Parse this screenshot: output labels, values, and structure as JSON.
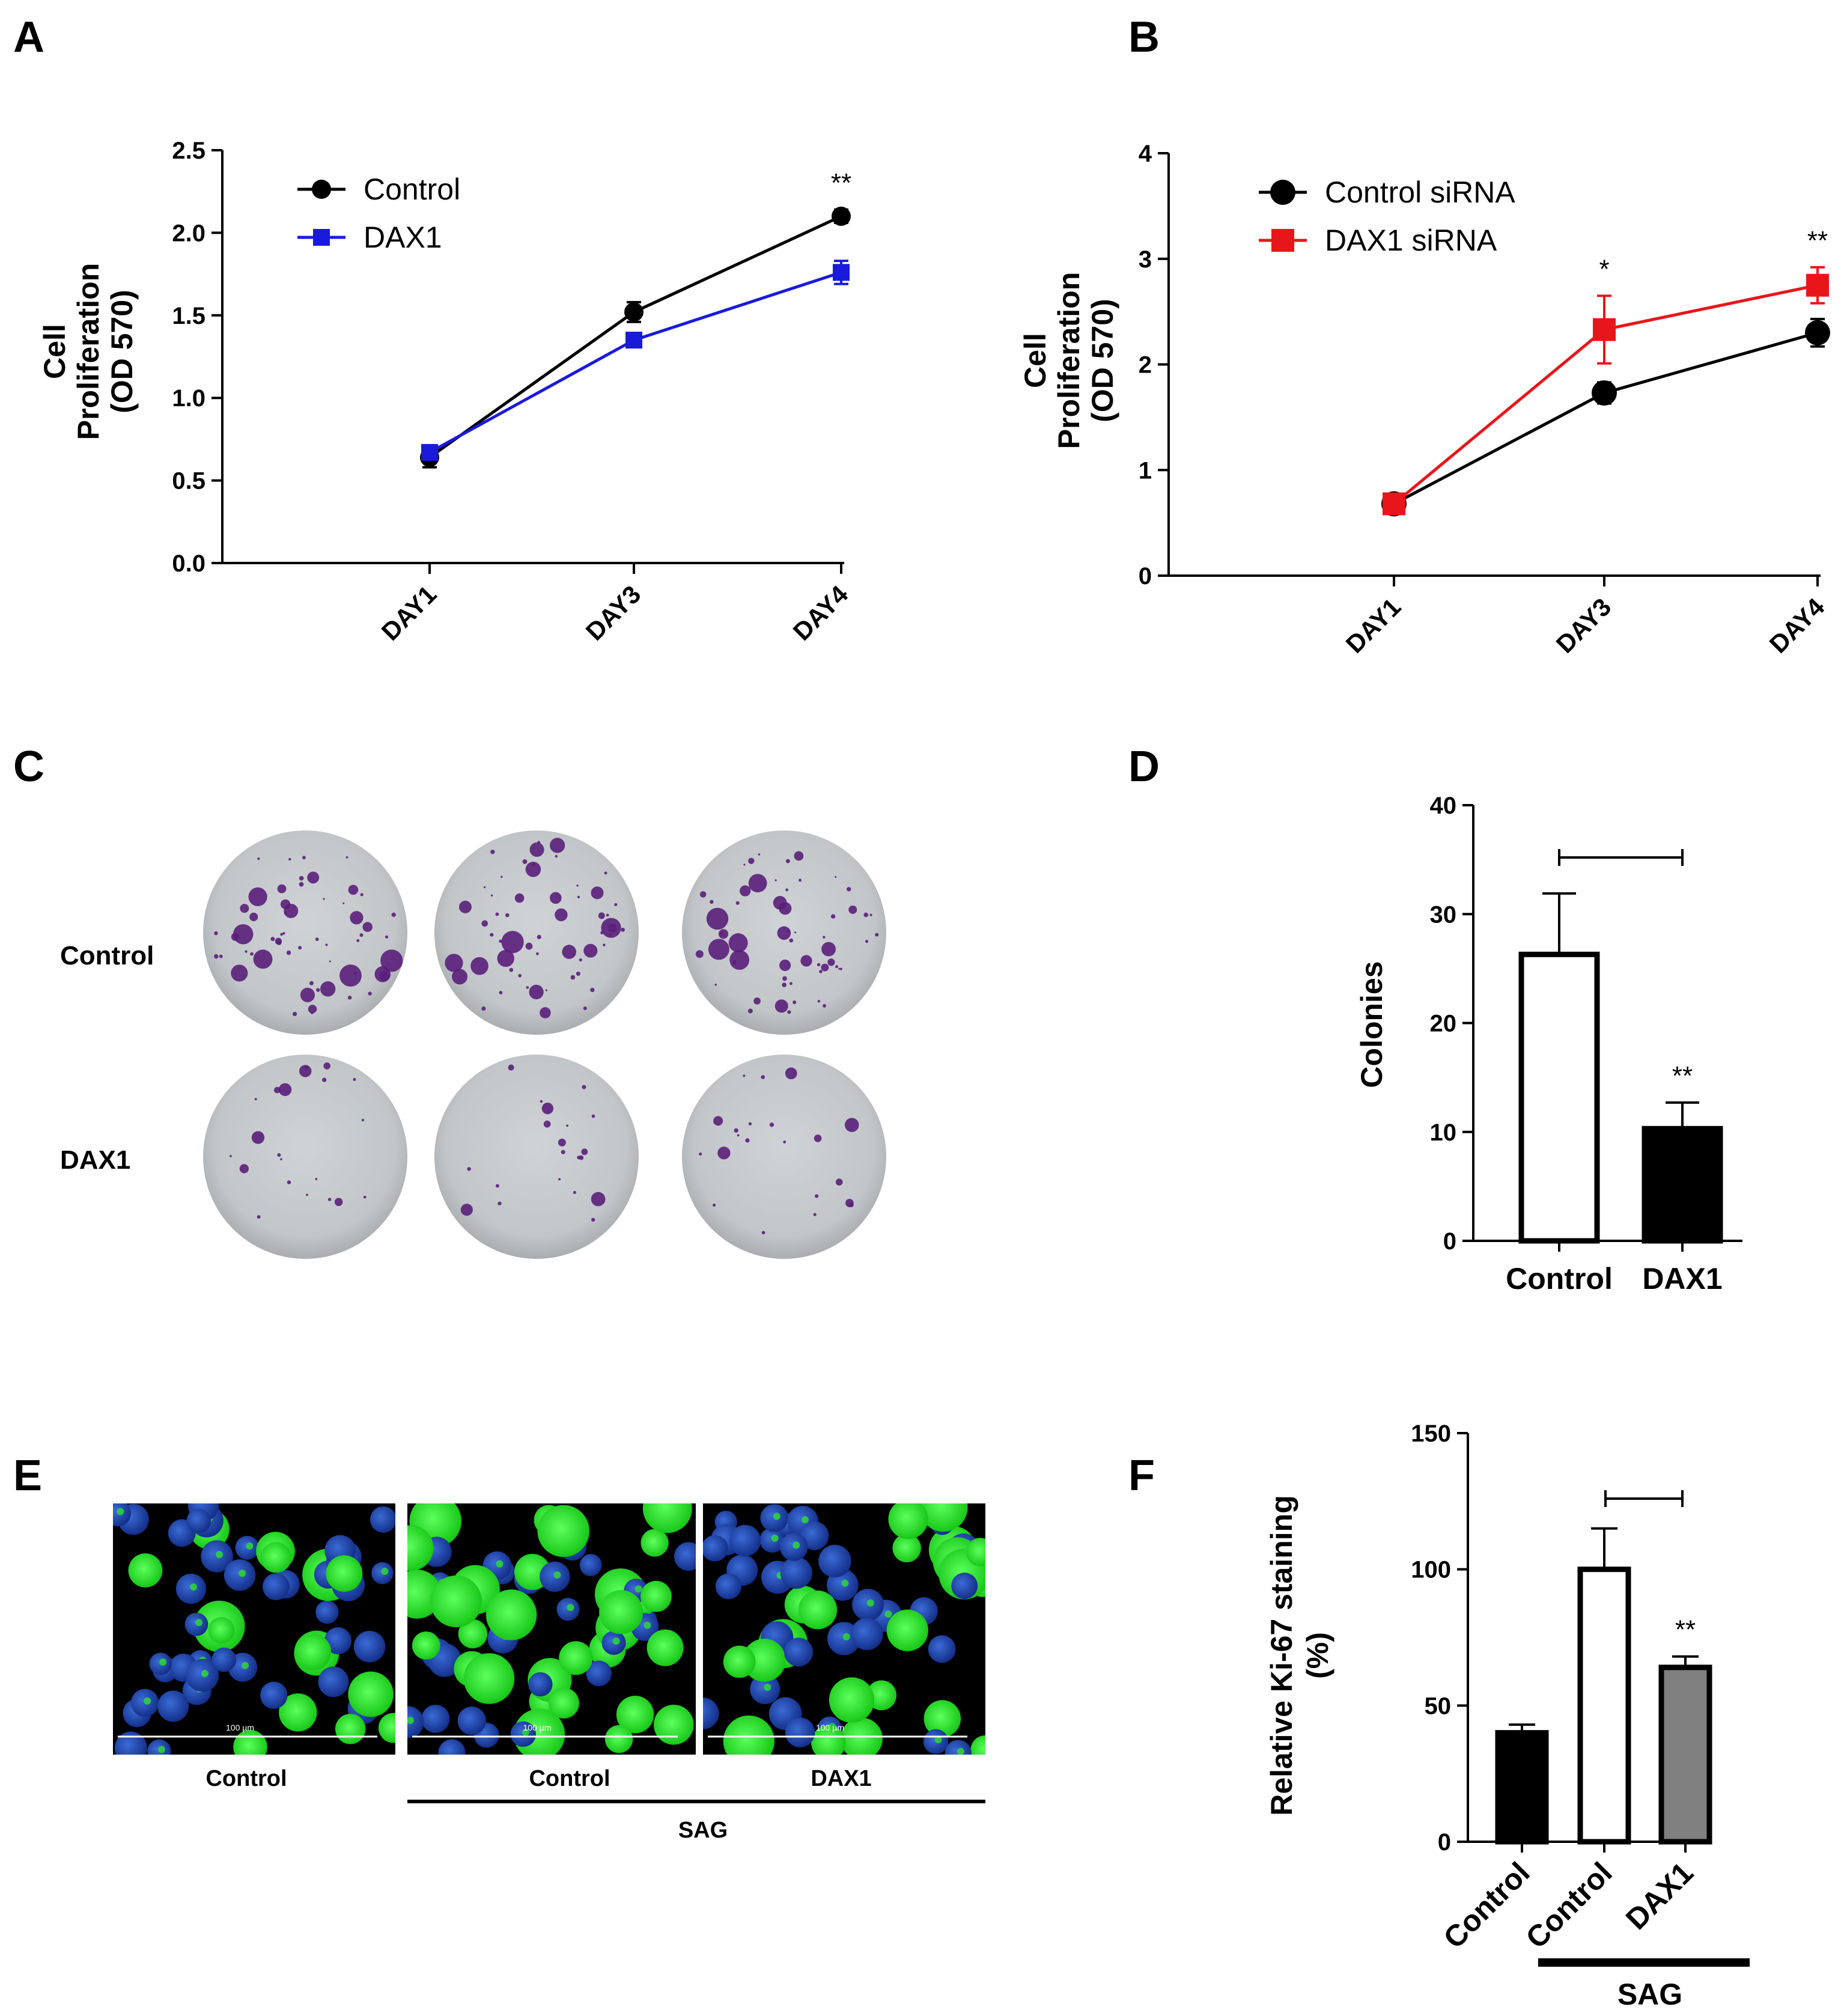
{
  "panels": {
    "a": "A",
    "b": "B",
    "c": "C",
    "d": "D",
    "e": "E",
    "f": "F"
  },
  "chart_data": [
    {
      "panel": "A",
      "type": "line",
      "categories": [
        "DAY1",
        "DAY3",
        "DAY4"
      ],
      "ylabel": [
        "Cell",
        "Proliferation",
        "(OD 570)"
      ],
      "ylim": [
        0,
        2.5
      ],
      "yticks": [
        "0.0",
        "0.5",
        "1.0",
        "1.5",
        "2.0",
        "2.5"
      ],
      "series": [
        {
          "name": "Control",
          "color": "#000000",
          "marker": "circle",
          "values": [
            0.64,
            1.52,
            2.1
          ],
          "errors": [
            0.06,
            0.06,
            0.04
          ]
        },
        {
          "name": "DAX1",
          "color": "#1a1adb",
          "marker": "square",
          "values": [
            0.67,
            1.35,
            1.76
          ],
          "errors": [
            0.03,
            0.03,
            0.07
          ]
        }
      ],
      "annotations": [
        {
          "category": "DAY4",
          "text": "**"
        }
      ]
    },
    {
      "panel": "B",
      "type": "line",
      "categories": [
        "DAY1",
        "DAY3",
        "DAY4"
      ],
      "ylabel": [
        "Cell",
        "Proliferation",
        "(OD 570)"
      ],
      "ylim": [
        0,
        4
      ],
      "yticks": [
        "0",
        "1",
        "2",
        "3",
        "4"
      ],
      "series": [
        {
          "name": "Control siRNA",
          "color": "#000000",
          "marker": "circle",
          "values": [
            0.68,
            1.73,
            2.3
          ],
          "errors": [
            0.03,
            0.1,
            0.13
          ]
        },
        {
          "name": "DAX1 siRNA",
          "color": "#e8161a",
          "marker": "square",
          "values": [
            0.68,
            2.33,
            2.75
          ],
          "errors": [
            0.03,
            0.32,
            0.17
          ]
        }
      ],
      "annotations": [
        {
          "category": "DAY3",
          "text": "*"
        },
        {
          "category": "DAY4",
          "text": "**"
        }
      ]
    },
    {
      "panel": "D",
      "type": "bar",
      "categories": [
        "Control",
        "DAX1"
      ],
      "values": [
        26.3,
        10.3
      ],
      "errors": [
        5.6,
        2.4
      ],
      "fills": [
        "#ffffff",
        "#000000"
      ],
      "ylabel": "Colonies",
      "ylim": [
        0,
        40
      ],
      "yticks": [
        "0",
        "10",
        "20",
        "30",
        "40"
      ],
      "annotations": [
        {
          "category": "DAX1",
          "text": "**"
        }
      ]
    },
    {
      "panel": "F",
      "type": "bar",
      "categories": [
        "Control",
        "Control",
        "DAX1"
      ],
      "values": [
        40,
        100,
        64
      ],
      "errors": [
        3,
        15,
        4
      ],
      "fills": [
        "#000000",
        "#ffffff",
        "#808080"
      ],
      "ylabel": [
        "Relative Ki-67 staining",
        "(%)"
      ],
      "ylim": [
        0,
        150
      ],
      "yticks": [
        "0",
        "50",
        "100",
        "150"
      ],
      "group_label": "SAG",
      "annotations": [
        {
          "category": "DAX1",
          "text": "**"
        }
      ]
    }
  ],
  "panel_c": {
    "row_labels": [
      "Control",
      "DAX1"
    ]
  },
  "panel_e": {
    "captions": [
      "Control",
      "Control",
      "DAX1"
    ],
    "group_label": "SAG",
    "scale_bar": "100 µm"
  }
}
